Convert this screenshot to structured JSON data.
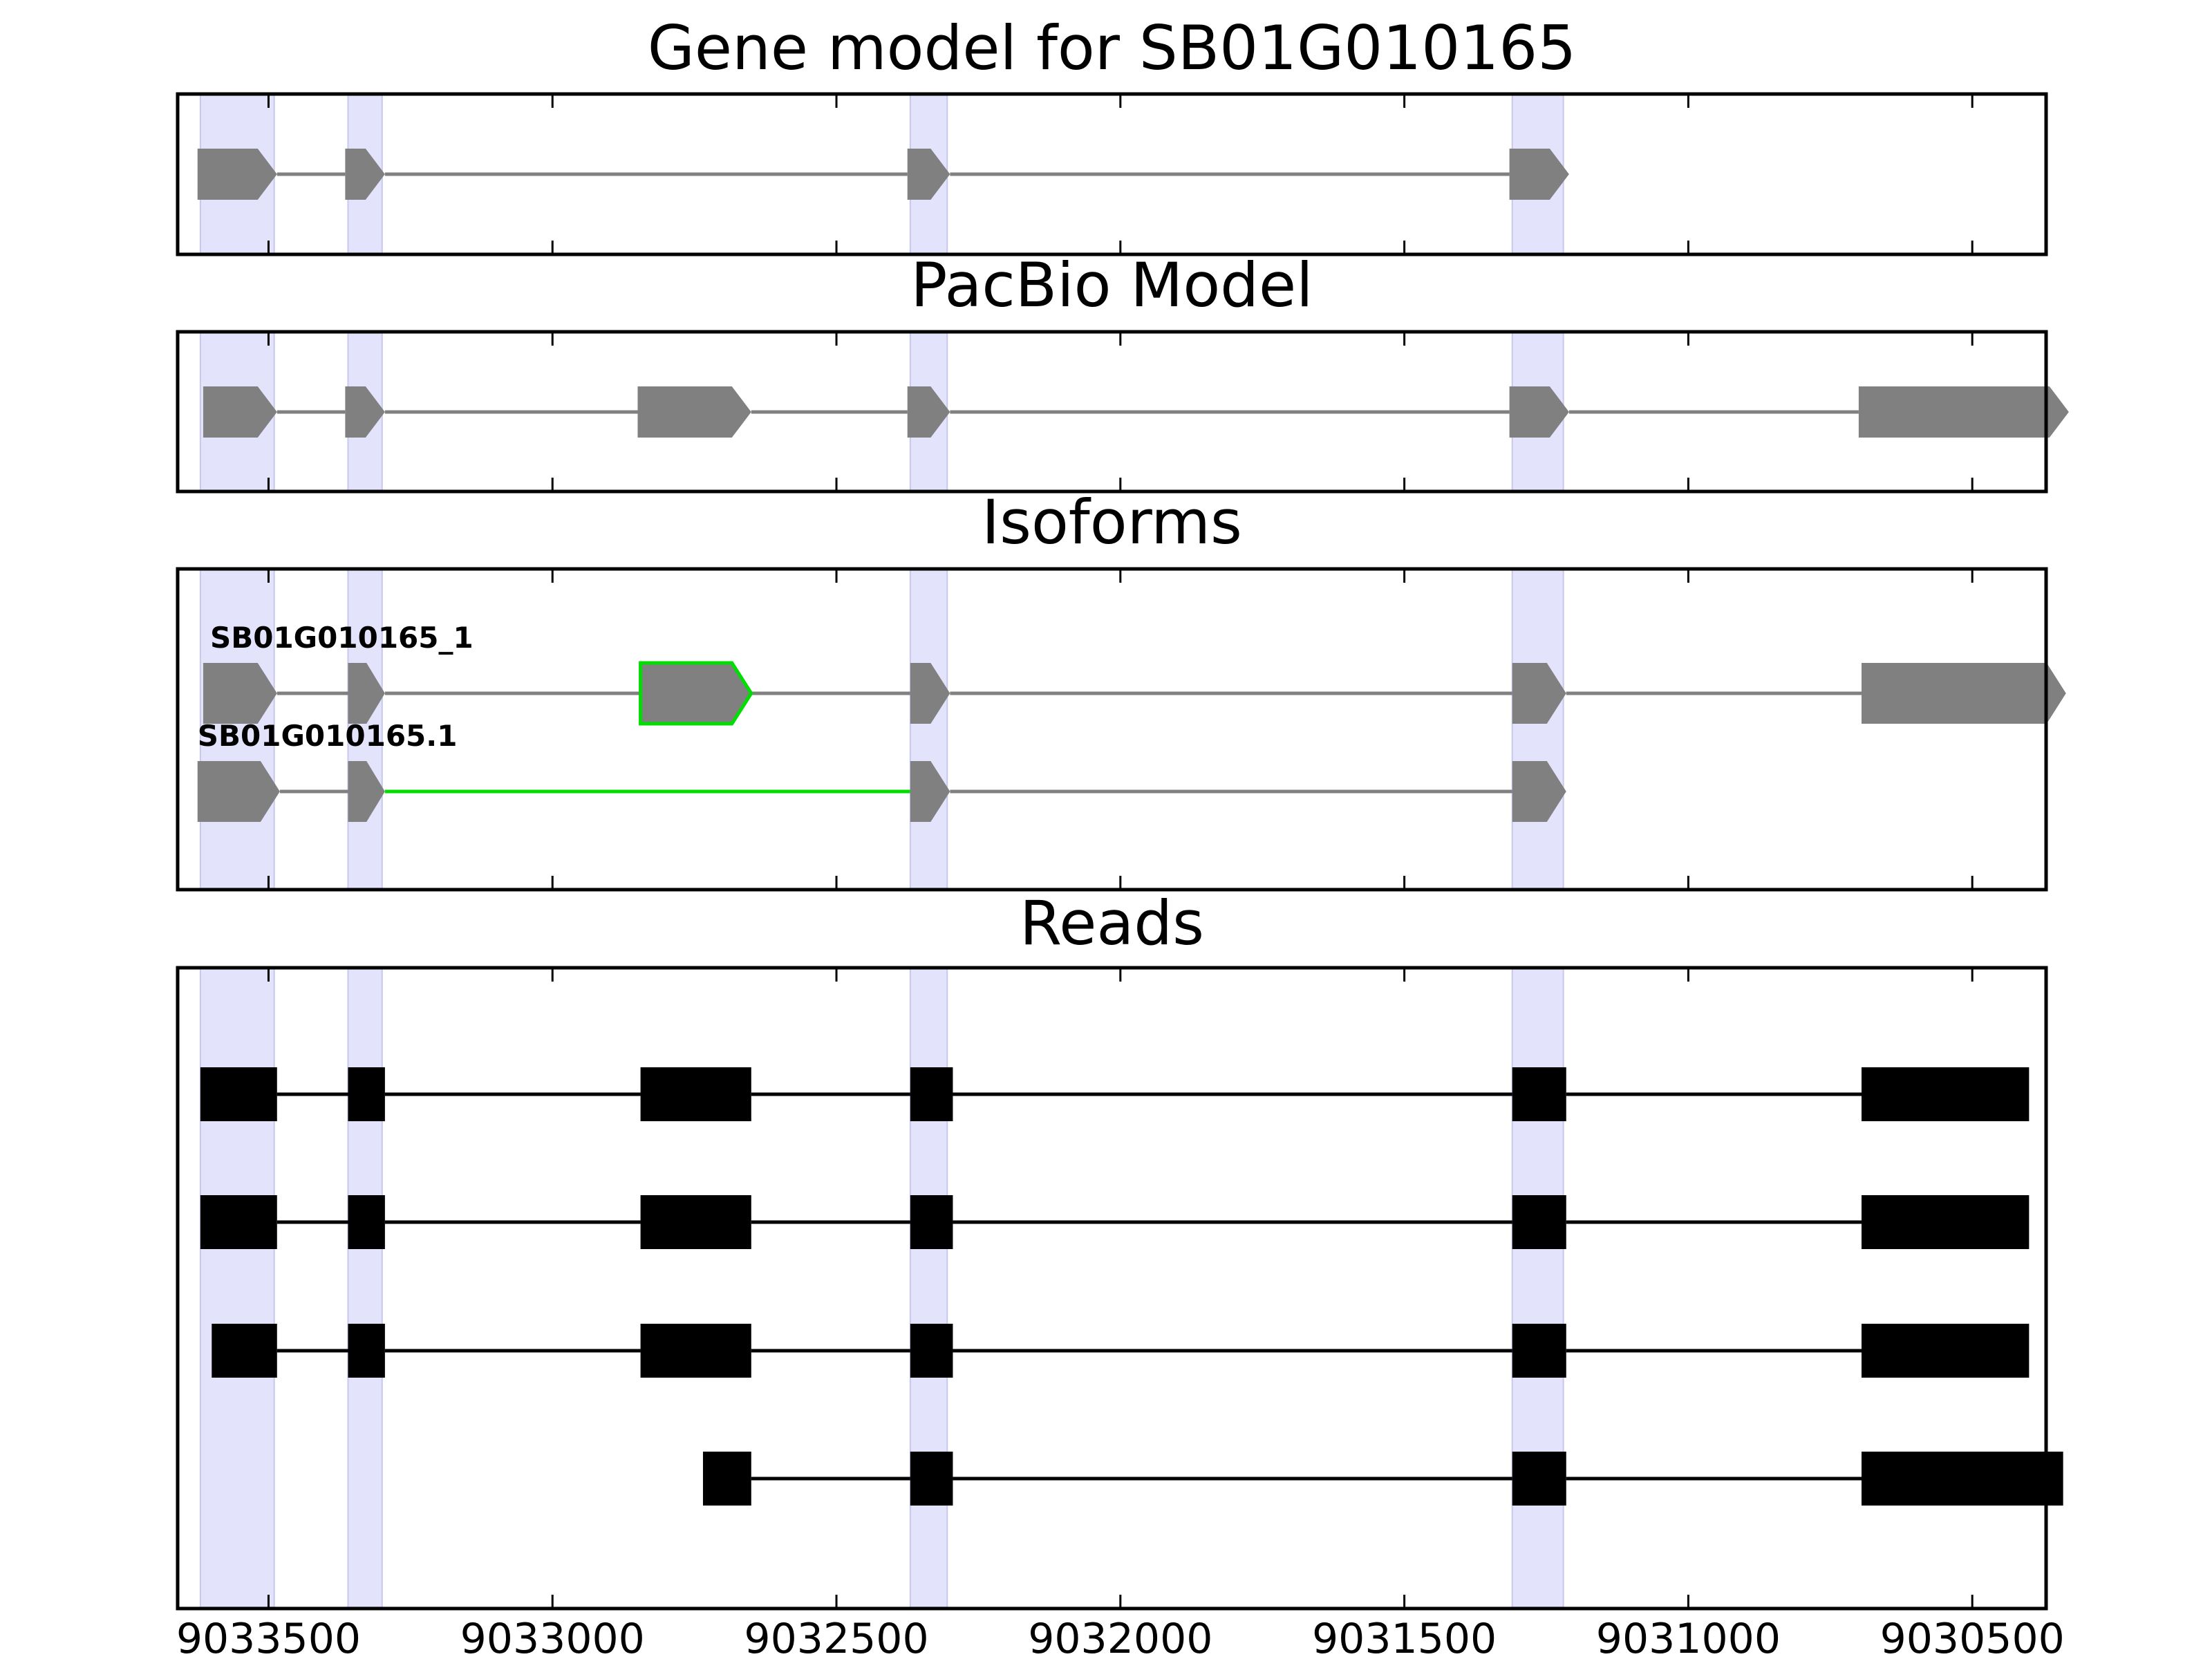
{
  "chart_data": {
    "type": "gene-model-tracks",
    "xlim": [
      9033660,
      9030370
    ],
    "x_ticks": [
      9033500,
      9033000,
      9032500,
      9032000,
      9031500,
      9031000,
      9030500
    ],
    "x_tick_labels": [
      "9033500",
      "9033000",
      "9032500",
      "9032000",
      "9031500",
      "9031000",
      "9030500"
    ],
    "highlight_regions": [
      [
        9033620,
        9033490
      ],
      [
        9033360,
        9033300
      ],
      [
        9032370,
        9032305
      ],
      [
        9031310,
        9031220
      ]
    ],
    "colors": {
      "exon": "#808080",
      "intron": "#808080",
      "novel": "#00dd00",
      "read": "#000000",
      "highlight": "#e3e3fb"
    },
    "panels": [
      {
        "title": "Gene model for SB01G010165",
        "tracks": [
          {
            "label": "",
            "strand": "-",
            "exons": [
              [
                9033625,
                9033485
              ],
              [
                9033365,
                9033295
              ],
              [
                9032375,
                9032300
              ],
              [
                9031315,
                9031210
              ]
            ]
          }
        ]
      },
      {
        "title": "PacBio Model",
        "tracks": [
          {
            "label": "",
            "strand": "-",
            "exons": [
              [
                9033615,
                9033485
              ],
              [
                9033365,
                9033295
              ],
              [
                9032850,
                9032650
              ],
              [
                9032375,
                9032300
              ],
              [
                9031315,
                9031210
              ],
              [
                9030700,
                9030330
              ]
            ]
          }
        ]
      },
      {
        "title": "Isoforms",
        "tracks": [
          {
            "label": "SB01G010165_1",
            "strand": "-",
            "exons": [
              [
                9033615,
                9033485
              ],
              [
                9033360,
                9033295
              ],
              [
                9032845,
                9032650
              ],
              [
                9032370,
                9032300
              ],
              [
                9031310,
                9031215
              ],
              [
                9030695,
                9030335
              ]
            ],
            "novel_exons": [
              2
            ]
          },
          {
            "label": "SB01G010165.1",
            "strand": "-",
            "exons": [
              [
                9033625,
                9033480
              ],
              [
                9033360,
                9033295
              ],
              [
                9032370,
                9032300
              ],
              [
                9031310,
                9031215
              ]
            ],
            "novel_introns": [
              1
            ]
          }
        ]
      },
      {
        "title": "Reads",
        "tracks": [
          {
            "label": "",
            "strand": "",
            "exons": [
              [
                9033620,
                9033485
              ],
              [
                9033360,
                9033295
              ],
              [
                9032845,
                9032650
              ],
              [
                9032370,
                9032295
              ],
              [
                9031310,
                9031215
              ],
              [
                9030695,
                9030400
              ]
            ]
          },
          {
            "label": "",
            "strand": "",
            "exons": [
              [
                9033620,
                9033485
              ],
              [
                9033360,
                9033295
              ],
              [
                9032845,
                9032650
              ],
              [
                9032370,
                9032295
              ],
              [
                9031310,
                9031215
              ],
              [
                9030695,
                9030400
              ]
            ]
          },
          {
            "label": "",
            "strand": "",
            "exons": [
              [
                9033600,
                9033485
              ],
              [
                9033360,
                9033295
              ],
              [
                9032845,
                9032650
              ],
              [
                9032370,
                9032295
              ],
              [
                9031310,
                9031215
              ],
              [
                9030695,
                9030400
              ]
            ]
          },
          {
            "label": "",
            "strand": "",
            "exons": [
              [
                9032735,
                9032650
              ],
              [
                9032370,
                9032295
              ],
              [
                9031310,
                9031215
              ],
              [
                9030695,
                9030340
              ]
            ]
          }
        ]
      }
    ]
  }
}
